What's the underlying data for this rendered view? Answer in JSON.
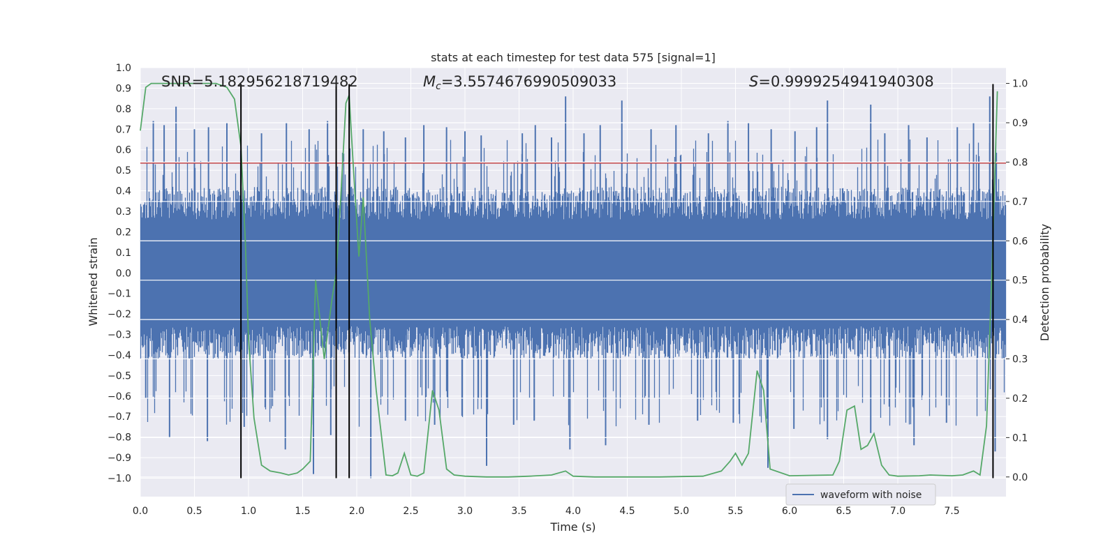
{
  "chart_data": {
    "type": "line",
    "title": "stats at each timestep for test data 575 [signal=1]",
    "xlabel": "Time (s)",
    "ylabel": "Whitened strain",
    "ylabel_right": "Detection probability",
    "xlim": [
      0.0,
      8.0
    ],
    "ylim": [
      -1.09,
      1.0
    ],
    "ylim_right": [
      -0.05,
      1.04
    ],
    "x_ticks": [
      "0.0",
      "0.5",
      "1.0",
      "1.5",
      "2.0",
      "2.5",
      "3.0",
      "3.5",
      "4.0",
      "4.5",
      "5.0",
      "5.5",
      "6.0",
      "6.5",
      "7.0",
      "7.5"
    ],
    "y_ticks": [
      "1.0",
      "0.9",
      "0.8",
      "0.7",
      "0.6",
      "0.5",
      "0.4",
      "0.3",
      "0.2",
      "0.1",
      "0.0",
      "−0.1",
      "−0.2",
      "−0.3",
      "−0.4",
      "−0.5",
      "−0.6",
      "−0.7",
      "−0.8",
      "−0.9",
      "−1.0"
    ],
    "y_right_ticks": [
      "1.0",
      "0.9",
      "0.8",
      "0.7",
      "0.6",
      "0.5",
      "0.4",
      "0.3",
      "0.2",
      "0.1",
      "0.0"
    ],
    "annotations": {
      "snr": "SNR=5.182956218719482",
      "mc_symbol": "M",
      "mc_sub": "c",
      "mc_value": "=3.5574676990509033",
      "s_symbol": "S",
      "s_value": "=0.9999254941940308"
    },
    "threshold_line": {
      "y": 0.535,
      "color": "#c44e52"
    },
    "vertical_lines": [
      0.93,
      1.81,
      1.93,
      7.88
    ],
    "vertical_line_range": [
      -1.0,
      0.92
    ],
    "series": [
      {
        "name": "waveform with noise",
        "color": "#4c72b0",
        "core_amplitude": 0.42,
        "spikes": [
          {
            "x": 0.12,
            "y": 0.74
          },
          {
            "x": 0.22,
            "y": 0.72
          },
          {
            "x": 0.33,
            "y": 0.81
          },
          {
            "x": 0.5,
            "y": 0.7
          },
          {
            "x": 0.63,
            "y": 0.71
          },
          {
            "x": 0.8,
            "y": 0.73
          },
          {
            "x": 1.12,
            "y": 0.68
          },
          {
            "x": 1.35,
            "y": 0.73
          },
          {
            "x": 1.56,
            "y": 0.7
          },
          {
            "x": 1.73,
            "y": 0.74
          },
          {
            "x": 2.06,
            "y": 0.7
          },
          {
            "x": 2.25,
            "y": 0.69
          },
          {
            "x": 2.45,
            "y": 0.66
          },
          {
            "x": 2.62,
            "y": 0.72
          },
          {
            "x": 2.83,
            "y": 0.71
          },
          {
            "x": 3.0,
            "y": 0.69
          },
          {
            "x": 3.15,
            "y": 0.67
          },
          {
            "x": 3.53,
            "y": 0.68
          },
          {
            "x": 3.65,
            "y": 0.72
          },
          {
            "x": 3.8,
            "y": 0.66
          },
          {
            "x": 3.93,
            "y": 0.86
          },
          {
            "x": 4.1,
            "y": 0.68
          },
          {
            "x": 4.25,
            "y": 0.72
          },
          {
            "x": 4.45,
            "y": 0.84
          },
          {
            "x": 4.72,
            "y": 0.7
          },
          {
            "x": 4.95,
            "y": 0.72
          },
          {
            "x": 5.25,
            "y": 0.68
          },
          {
            "x": 5.43,
            "y": 0.74
          },
          {
            "x": 5.62,
            "y": 0.73
          },
          {
            "x": 5.83,
            "y": 0.7
          },
          {
            "x": 6.05,
            "y": 0.69
          },
          {
            "x": 6.25,
            "y": 0.71
          },
          {
            "x": 6.35,
            "y": 0.84
          },
          {
            "x": 6.75,
            "y": 0.82
          },
          {
            "x": 6.88,
            "y": 0.68
          },
          {
            "x": 7.1,
            "y": 0.72
          },
          {
            "x": 7.27,
            "y": 0.66
          },
          {
            "x": 7.55,
            "y": 0.71
          },
          {
            "x": 7.7,
            "y": 0.73
          },
          {
            "x": 7.85,
            "y": 0.86
          },
          {
            "x": 0.05,
            "y": -0.61
          },
          {
            "x": 0.27,
            "y": -0.8
          },
          {
            "x": 0.62,
            "y": -0.82
          },
          {
            "x": 0.96,
            "y": -0.75
          },
          {
            "x": 1.34,
            "y": -0.86
          },
          {
            "x": 1.6,
            "y": -0.98
          },
          {
            "x": 1.76,
            "y": -0.79
          },
          {
            "x": 2.13,
            "y": -1.0
          },
          {
            "x": 2.45,
            "y": -0.72
          },
          {
            "x": 2.72,
            "y": -0.74
          },
          {
            "x": 3.2,
            "y": -0.94
          },
          {
            "x": 3.45,
            "y": -0.74
          },
          {
            "x": 3.64,
            "y": -0.72
          },
          {
            "x": 3.97,
            "y": -0.86
          },
          {
            "x": 4.3,
            "y": -0.84
          },
          {
            "x": 4.7,
            "y": -0.74
          },
          {
            "x": 5.15,
            "y": -0.72
          },
          {
            "x": 5.48,
            "y": -0.73
          },
          {
            "x": 5.8,
            "y": -0.95
          },
          {
            "x": 6.04,
            "y": -0.76
          },
          {
            "x": 6.35,
            "y": -0.81
          },
          {
            "x": 6.75,
            "y": -0.78
          },
          {
            "x": 7.15,
            "y": -0.84
          },
          {
            "x": 7.45,
            "y": -0.73
          },
          {
            "x": 7.9,
            "y": -0.87
          }
        ]
      },
      {
        "name": "detection probability",
        "color": "#55a868",
        "axis": "right",
        "x": [
          0.0,
          0.05,
          0.1,
          0.15,
          0.2,
          0.3,
          0.4,
          0.5,
          0.6,
          0.7,
          0.8,
          0.87,
          0.93,
          0.97,
          1.0,
          1.05,
          1.12,
          1.2,
          1.3,
          1.37,
          1.45,
          1.5,
          1.57,
          1.62,
          1.7,
          1.77,
          1.81,
          1.85,
          1.9,
          1.93,
          1.97,
          2.02,
          2.06,
          2.12,
          2.18,
          2.27,
          2.33,
          2.38,
          2.44,
          2.5,
          2.56,
          2.62,
          2.7,
          2.76,
          2.83,
          2.9,
          3.0,
          3.2,
          3.4,
          3.6,
          3.8,
          3.93,
          4.0,
          4.2,
          4.5,
          4.8,
          5.0,
          5.2,
          5.37,
          5.45,
          5.5,
          5.56,
          5.62,
          5.7,
          5.76,
          5.82,
          6.0,
          6.2,
          6.4,
          6.46,
          6.53,
          6.6,
          6.66,
          6.72,
          6.78,
          6.85,
          6.92,
          7.0,
          7.2,
          7.3,
          7.5,
          7.6,
          7.7,
          7.76,
          7.82,
          7.87,
          7.92
        ],
        "y": [
          0.88,
          0.99,
          1.0,
          1.0,
          1.0,
          1.0,
          1.0,
          1.0,
          1.0,
          1.0,
          0.99,
          0.96,
          0.84,
          0.6,
          0.35,
          0.15,
          0.03,
          0.015,
          0.01,
          0.005,
          0.01,
          0.02,
          0.04,
          0.5,
          0.3,
          0.45,
          0.52,
          0.7,
          0.95,
          0.97,
          0.78,
          0.56,
          0.71,
          0.4,
          0.22,
          0.005,
          0.003,
          0.01,
          0.06,
          0.005,
          0.002,
          0.01,
          0.22,
          0.17,
          0.02,
          0.005,
          0.002,
          0.0,
          0.0,
          0.002,
          0.005,
          0.015,
          0.002,
          0.0,
          0.0,
          0.0,
          0.001,
          0.002,
          0.015,
          0.04,
          0.06,
          0.03,
          0.06,
          0.27,
          0.22,
          0.02,
          0.003,
          0.004,
          0.005,
          0.04,
          0.17,
          0.18,
          0.07,
          0.08,
          0.11,
          0.03,
          0.005,
          0.002,
          0.003,
          0.005,
          0.003,
          0.005,
          0.015,
          0.005,
          0.13,
          0.52,
          0.98
        ]
      }
    ],
    "legend": {
      "label": "waveform with noise",
      "position": "lower-right"
    }
  }
}
